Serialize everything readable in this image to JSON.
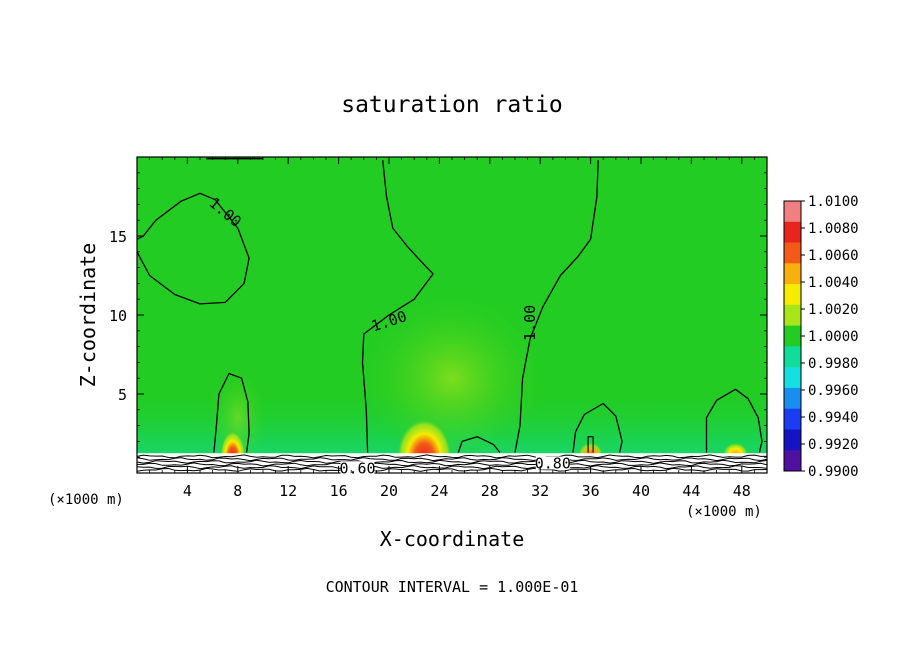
{
  "chart_data": {
    "type": "heatmap",
    "title": "saturation ratio",
    "xlabel": "X-coordinate",
    "ylabel": "Z-coordinate",
    "x_unit_left": "(×1000 m)",
    "x_unit_right": "(×1000 m)",
    "xlim": [
      0,
      50
    ],
    "ylim": [
      0,
      20
    ],
    "x_ticks": [
      4,
      8,
      12,
      16,
      20,
      24,
      28,
      32,
      36,
      40,
      44,
      48
    ],
    "y_ticks": [
      5,
      10,
      15
    ],
    "footer": "CONTOUR INTERVAL = 1.000E-01",
    "colorbar": {
      "labels": [
        "1.0100",
        "1.0080",
        "1.0060",
        "1.0040",
        "1.0020",
        "1.0000",
        "0.9980",
        "0.9960",
        "0.9940",
        "0.9920",
        "0.9900"
      ],
      "bands": [
        "#f07f7f",
        "#e8241c",
        "#f25a18",
        "#f7b00c",
        "#f5ec00",
        "#a8e61a",
        "#22cc22",
        "#10dd99",
        "#14e0e0",
        "#1a8df0",
        "#1a3cf5",
        "#1414c0",
        "#5010a0"
      ]
    },
    "background_value": 1.0,
    "background_color": "#22cc22",
    "contour_labels": [
      {
        "text": "1.00",
        "x": 7,
        "z": 16.5
      },
      {
        "text": "1.00",
        "x": 20,
        "z": 9.6
      },
      {
        "text": "1.00",
        "x": 31.2,
        "z": 9.5
      },
      {
        "text": "0.60",
        "x": 17.5,
        "z": 0.3
      },
      {
        "text": "0.80",
        "x": 33,
        "z": 0.6
      }
    ],
    "contours_1_00": [
      [
        [
          0,
          14
        ],
        [
          1,
          12.5
        ],
        [
          3,
          11.3
        ],
        [
          5,
          10.7
        ],
        [
          7,
          10.8
        ],
        [
          8.5,
          12
        ],
        [
          8.9,
          13.6
        ],
        [
          8,
          15.5
        ],
        [
          6.2,
          17.3
        ],
        [
          5,
          17.7
        ],
        [
          3.5,
          17.2
        ],
        [
          1.5,
          16
        ],
        [
          0.5,
          15
        ],
        [
          0,
          14.8
        ]
      ],
      [
        [
          19.5,
          19.8
        ],
        [
          19.8,
          17.5
        ],
        [
          20.3,
          15.5
        ],
        [
          21.5,
          14.3
        ],
        [
          23,
          13
        ],
        [
          23.5,
          12.6
        ],
        [
          22,
          11
        ],
        [
          20,
          10
        ],
        [
          18,
          8.8
        ],
        [
          17.9,
          7
        ],
        [
          18.2,
          4
        ],
        [
          18.3,
          1.3
        ]
      ],
      [
        [
          30,
          1.3
        ],
        [
          30.4,
          3
        ],
        [
          30.6,
          6
        ],
        [
          31.2,
          8.5
        ],
        [
          32.2,
          10.5
        ],
        [
          33.6,
          12.5
        ],
        [
          35,
          13.7
        ],
        [
          36,
          14.8
        ],
        [
          36.5,
          17.5
        ],
        [
          36.6,
          19.8
        ]
      ],
      [
        [
          6.1,
          1.3
        ],
        [
          6.3,
          3
        ],
        [
          6.5,
          5
        ],
        [
          7.3,
          6.3
        ],
        [
          8.3,
          6
        ],
        [
          8.8,
          4.5
        ],
        [
          8.9,
          2.5
        ],
        [
          8.7,
          1.3
        ]
      ],
      [
        [
          34.6,
          1.3
        ],
        [
          34.8,
          2.6
        ],
        [
          35.5,
          3.7
        ],
        [
          37,
          4.4
        ],
        [
          38,
          3.6
        ],
        [
          38.5,
          2
        ],
        [
          38.3,
          1.3
        ]
      ],
      [
        [
          45.2,
          1.3
        ],
        [
          45.2,
          3.5
        ],
        [
          46,
          4.6
        ],
        [
          47.5,
          5.3
        ],
        [
          48.5,
          4.7
        ],
        [
          49.3,
          3.5
        ],
        [
          49.6,
          2
        ],
        [
          49.4,
          1.3
        ]
      ],
      [
        [
          25.5,
          1.3
        ],
        [
          25.8,
          2
        ],
        [
          27,
          2.3
        ],
        [
          28.3,
          1.8
        ],
        [
          28.8,
          1.3
        ]
      ]
    ],
    "blobs": [
      {
        "x": 22.8,
        "z": 2.0,
        "rx": 2.2,
        "rz": 2.4,
        "peak": "#e8241c"
      },
      {
        "x": 7.6,
        "z": 1.7,
        "rx": 1.0,
        "rz": 1.6,
        "peak": "#e8241c"
      },
      {
        "x": 36,
        "z": 1.5,
        "rx": 1.0,
        "rz": 0.8,
        "peak": "#f25a18"
      },
      {
        "x": 47.5,
        "z": 1.5,
        "rx": 1.0,
        "rz": 0.7,
        "peak": "#f7b00c"
      }
    ]
  }
}
